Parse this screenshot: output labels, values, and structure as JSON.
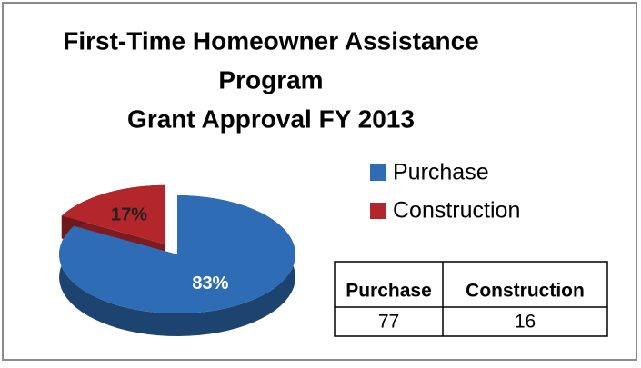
{
  "chart_data": {
    "type": "pie",
    "title": [
      "First-Time Homeowner Assistance",
      "Program",
      "Grant Approval FY 2013"
    ],
    "categories": [
      "Purchase",
      "Construction"
    ],
    "values": [
      83,
      17
    ],
    "value_labels": [
      "83%",
      "17%"
    ],
    "colors": [
      "#2e6db6",
      "#b3262b"
    ],
    "legend": "right",
    "data_table": {
      "values": [
        77,
        16
      ]
    }
  }
}
